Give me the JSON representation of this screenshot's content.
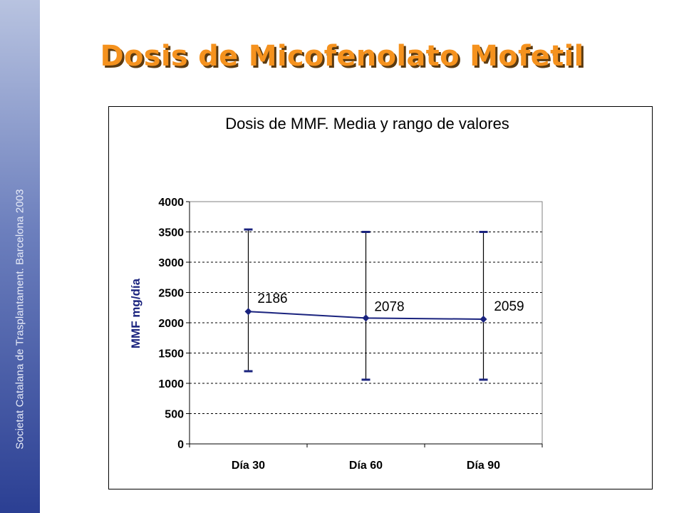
{
  "slide": {
    "title": "Dosis de Micofenolato Mofetil",
    "side_text": "Societat Catalana de Trasplantament. Barcelona 2003"
  },
  "colors": {
    "title": "#f5921e",
    "series": "#1a237e",
    "sidebar": "#2b3f93"
  },
  "chart_data": {
    "type": "line",
    "title": "Dosis de MMF. Media y rango de valores",
    "xlabel": "",
    "ylabel": "MMF mg/día",
    "categories": [
      "Día 30",
      "Día 60",
      "Día 90"
    ],
    "series": [
      {
        "values": [
          2186,
          2078,
          2059
        ],
        "min": [
          1200,
          1060,
          1060
        ],
        "max": [
          3540,
          3500,
          3500
        ],
        "data_labels": [
          "2186",
          "2078",
          "2059"
        ]
      }
    ],
    "ylim": [
      0,
      4000
    ],
    "yticks": [
      0,
      500,
      1000,
      1500,
      2000,
      2500,
      3000,
      3500,
      4000
    ],
    "grid": true,
    "legend": "none"
  }
}
